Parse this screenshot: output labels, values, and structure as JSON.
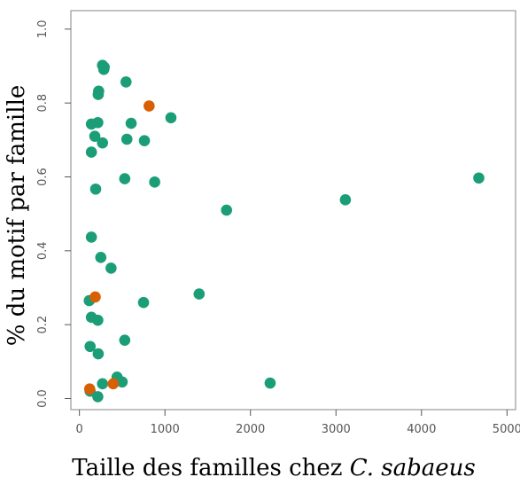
{
  "chart_data": {
    "type": "scatter",
    "title": "",
    "xlabel_prefix": "Taille des familles chez ",
    "xlabel_italic": "C. sabaeus",
    "ylabel": "% du motif par famille",
    "xlim": [
      -100,
      5100
    ],
    "ylim": [
      -0.03,
      1.05
    ],
    "xticks": [
      0,
      1000,
      2000,
      3000,
      4000,
      5000
    ],
    "yticks": [
      0.0,
      0.2,
      0.4,
      0.6,
      0.8,
      1.0
    ],
    "xtick_labels": [
      "0",
      "1000",
      "2000",
      "3000",
      "4000",
      "5000"
    ],
    "ytick_labels": [
      "0.0",
      "0.2",
      "0.4",
      "0.6",
      "0.8",
      "1.0"
    ],
    "grid": false,
    "colors": {
      "green": "#1b9e77",
      "orange": "#d95f02",
      "frame": "#999999"
    },
    "series": [
      {
        "color": "#1b9e77",
        "points": [
          [
            270,
            0.902
          ],
          [
            290,
            0.897
          ],
          [
            285,
            0.891
          ],
          [
            545,
            0.857
          ],
          [
            225,
            0.832
          ],
          [
            220,
            0.823
          ],
          [
            1070,
            0.76
          ],
          [
            605,
            0.745
          ],
          [
            215,
            0.747
          ],
          [
            140,
            0.743
          ],
          [
            180,
            0.71
          ],
          [
            760,
            0.698
          ],
          [
            555,
            0.702
          ],
          [
            270,
            0.692
          ],
          [
            140,
            0.667
          ],
          [
            880,
            0.586
          ],
          [
            530,
            0.595
          ],
          [
            190,
            0.567
          ],
          [
            4670,
            0.597
          ],
          [
            3110,
            0.538
          ],
          [
            1720,
            0.51
          ],
          [
            140,
            0.437
          ],
          [
            250,
            0.382
          ],
          [
            370,
            0.353
          ],
          [
            1400,
            0.283
          ],
          [
            750,
            0.26
          ],
          [
            115,
            0.265
          ],
          [
            140,
            0.22
          ],
          [
            215,
            0.212
          ],
          [
            530,
            0.158
          ],
          [
            125,
            0.141
          ],
          [
            220,
            0.121
          ],
          [
            440,
            0.058
          ],
          [
            500,
            0.045
          ],
          [
            270,
            0.04
          ],
          [
            2230,
            0.042
          ],
          [
            125,
            0.02
          ],
          [
            215,
            0.005
          ]
        ]
      },
      {
        "color": "#d95f02",
        "points": [
          [
            815,
            0.792
          ],
          [
            185,
            0.275
          ],
          [
            395,
            0.04
          ],
          [
            120,
            0.026
          ]
        ]
      }
    ]
  }
}
